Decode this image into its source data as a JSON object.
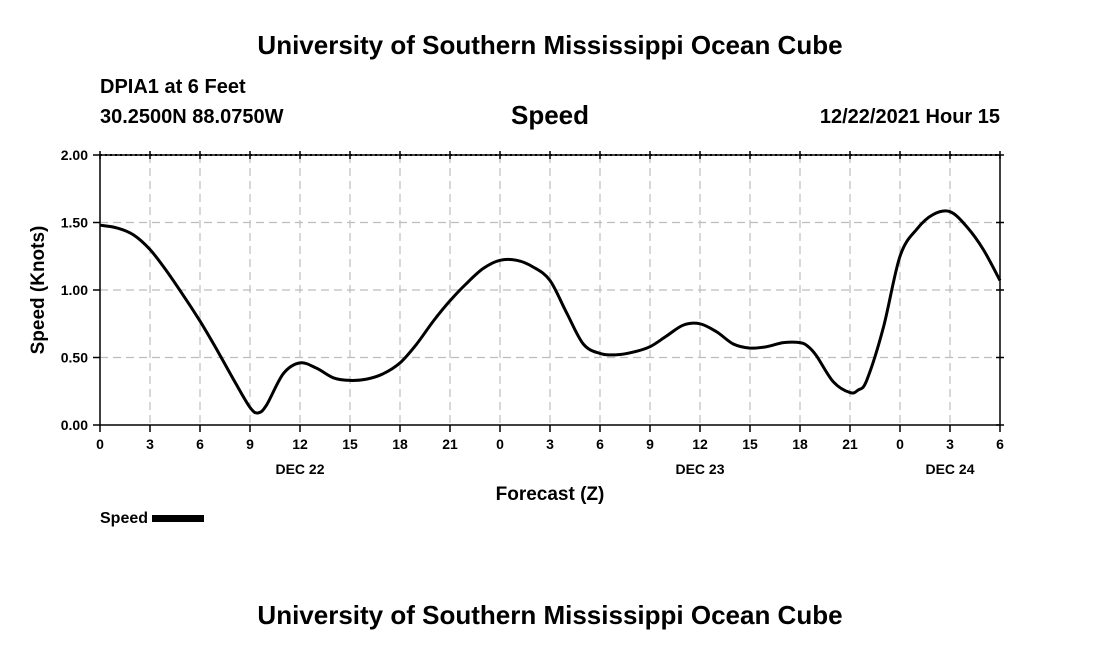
{
  "header": {
    "title_top": "University of Southern Mississippi Ocean Cube",
    "station": "DPIA1 at 6 Feet",
    "coords": "30.2500N  88.0750W",
    "center_title": "Speed",
    "datetime": "12/22/2021 Hour 15"
  },
  "footer": {
    "title_bottom": "University of Southern Mississippi Ocean Cube"
  },
  "legend": {
    "label": "Speed",
    "color": "#000000"
  },
  "chart_data": {
    "type": "line",
    "title": "Speed",
    "xlabel": "Forecast (Z)",
    "ylabel": "Speed (Knots)",
    "xlim": [
      0,
      54
    ],
    "ylim": [
      0,
      2.0
    ],
    "grid": true,
    "legend_position": "bottom-left",
    "x_ticks": [
      {
        "h": 0,
        "label": "0"
      },
      {
        "h": 3,
        "label": "3"
      },
      {
        "h": 6,
        "label": "6"
      },
      {
        "h": 9,
        "label": "9"
      },
      {
        "h": 12,
        "label": "12"
      },
      {
        "h": 15,
        "label": "15"
      },
      {
        "h": 18,
        "label": "18"
      },
      {
        "h": 21,
        "label": "21"
      },
      {
        "h": 24,
        "label": "0"
      },
      {
        "h": 27,
        "label": "3"
      },
      {
        "h": 30,
        "label": "6"
      },
      {
        "h": 33,
        "label": "9"
      },
      {
        "h": 36,
        "label": "12"
      },
      {
        "h": 39,
        "label": "15"
      },
      {
        "h": 42,
        "label": "18"
      },
      {
        "h": 45,
        "label": "21"
      },
      {
        "h": 48,
        "label": "0"
      },
      {
        "h": 51,
        "label": "3"
      },
      {
        "h": 54,
        "label": "6"
      }
    ],
    "date_labels": [
      {
        "h": 12,
        "label": "DEC 22"
      },
      {
        "h": 36,
        "label": "DEC 23"
      },
      {
        "h": 51,
        "label": "DEC 24"
      }
    ],
    "y_ticks": [
      {
        "v": 0.0,
        "label": "0.00"
      },
      {
        "v": 0.5,
        "label": "0.50"
      },
      {
        "v": 1.0,
        "label": "1.00"
      },
      {
        "v": 1.5,
        "label": "1.50"
      },
      {
        "v": 2.0,
        "label": "2.00"
      }
    ],
    "series": [
      {
        "name": "Speed",
        "x": [
          0,
          1,
          2,
          3,
          4,
          5,
          6,
          7,
          8,
          9,
          9.5,
          10,
          11,
          12,
          13,
          14,
          15,
          16,
          17,
          18,
          19,
          20,
          21,
          22,
          23,
          24,
          25,
          26,
          27,
          28,
          29,
          30,
          31,
          32,
          33,
          34,
          35,
          36,
          37,
          38,
          39,
          40,
          41,
          42,
          42.5,
          43,
          44,
          45,
          45.5,
          46,
          47,
          48,
          49,
          50,
          51,
          52,
          53,
          54
        ],
        "values": [
          1.48,
          1.46,
          1.41,
          1.3,
          1.14,
          0.96,
          0.77,
          0.56,
          0.34,
          0.13,
          0.09,
          0.15,
          0.38,
          0.46,
          0.42,
          0.35,
          0.33,
          0.34,
          0.38,
          0.46,
          0.6,
          0.77,
          0.92,
          1.05,
          1.16,
          1.22,
          1.22,
          1.17,
          1.07,
          0.83,
          0.6,
          0.53,
          0.52,
          0.54,
          0.58,
          0.66,
          0.74,
          0.75,
          0.69,
          0.6,
          0.57,
          0.58,
          0.61,
          0.61,
          0.58,
          0.51,
          0.32,
          0.24,
          0.26,
          0.33,
          0.72,
          1.25,
          1.45,
          1.56,
          1.58,
          1.47,
          1.3,
          1.07
        ]
      }
    ]
  }
}
